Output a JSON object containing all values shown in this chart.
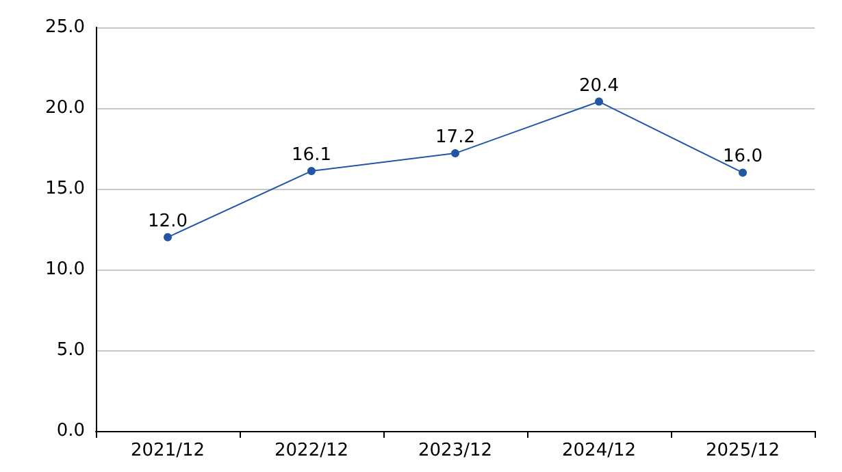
{
  "chart_data": {
    "type": "line",
    "categories": [
      "2021/12",
      "2022/12",
      "2023/12",
      "2024/12",
      "2025/12"
    ],
    "series": [
      {
        "color": "#2255a4",
        "values": [
          12.0,
          16.1,
          17.2,
          20.4,
          16.0
        ],
        "value_labels": [
          "12.0",
          "16.1",
          "17.2",
          "20.4",
          "16.0"
        ]
      }
    ],
    "ylim": [
      0,
      25
    ],
    "yticks": [
      {
        "value": 0,
        "label": "0.0"
      },
      {
        "value": 5,
        "label": "5.0"
      },
      {
        "value": 10,
        "label": "10.0"
      },
      {
        "value": 15,
        "label": "15.0"
      },
      {
        "value": 20,
        "label": "20.0"
      },
      {
        "value": 25,
        "label": "25.0"
      }
    ],
    "grid": "y",
    "marker": "circle",
    "line_style": "solid"
  }
}
